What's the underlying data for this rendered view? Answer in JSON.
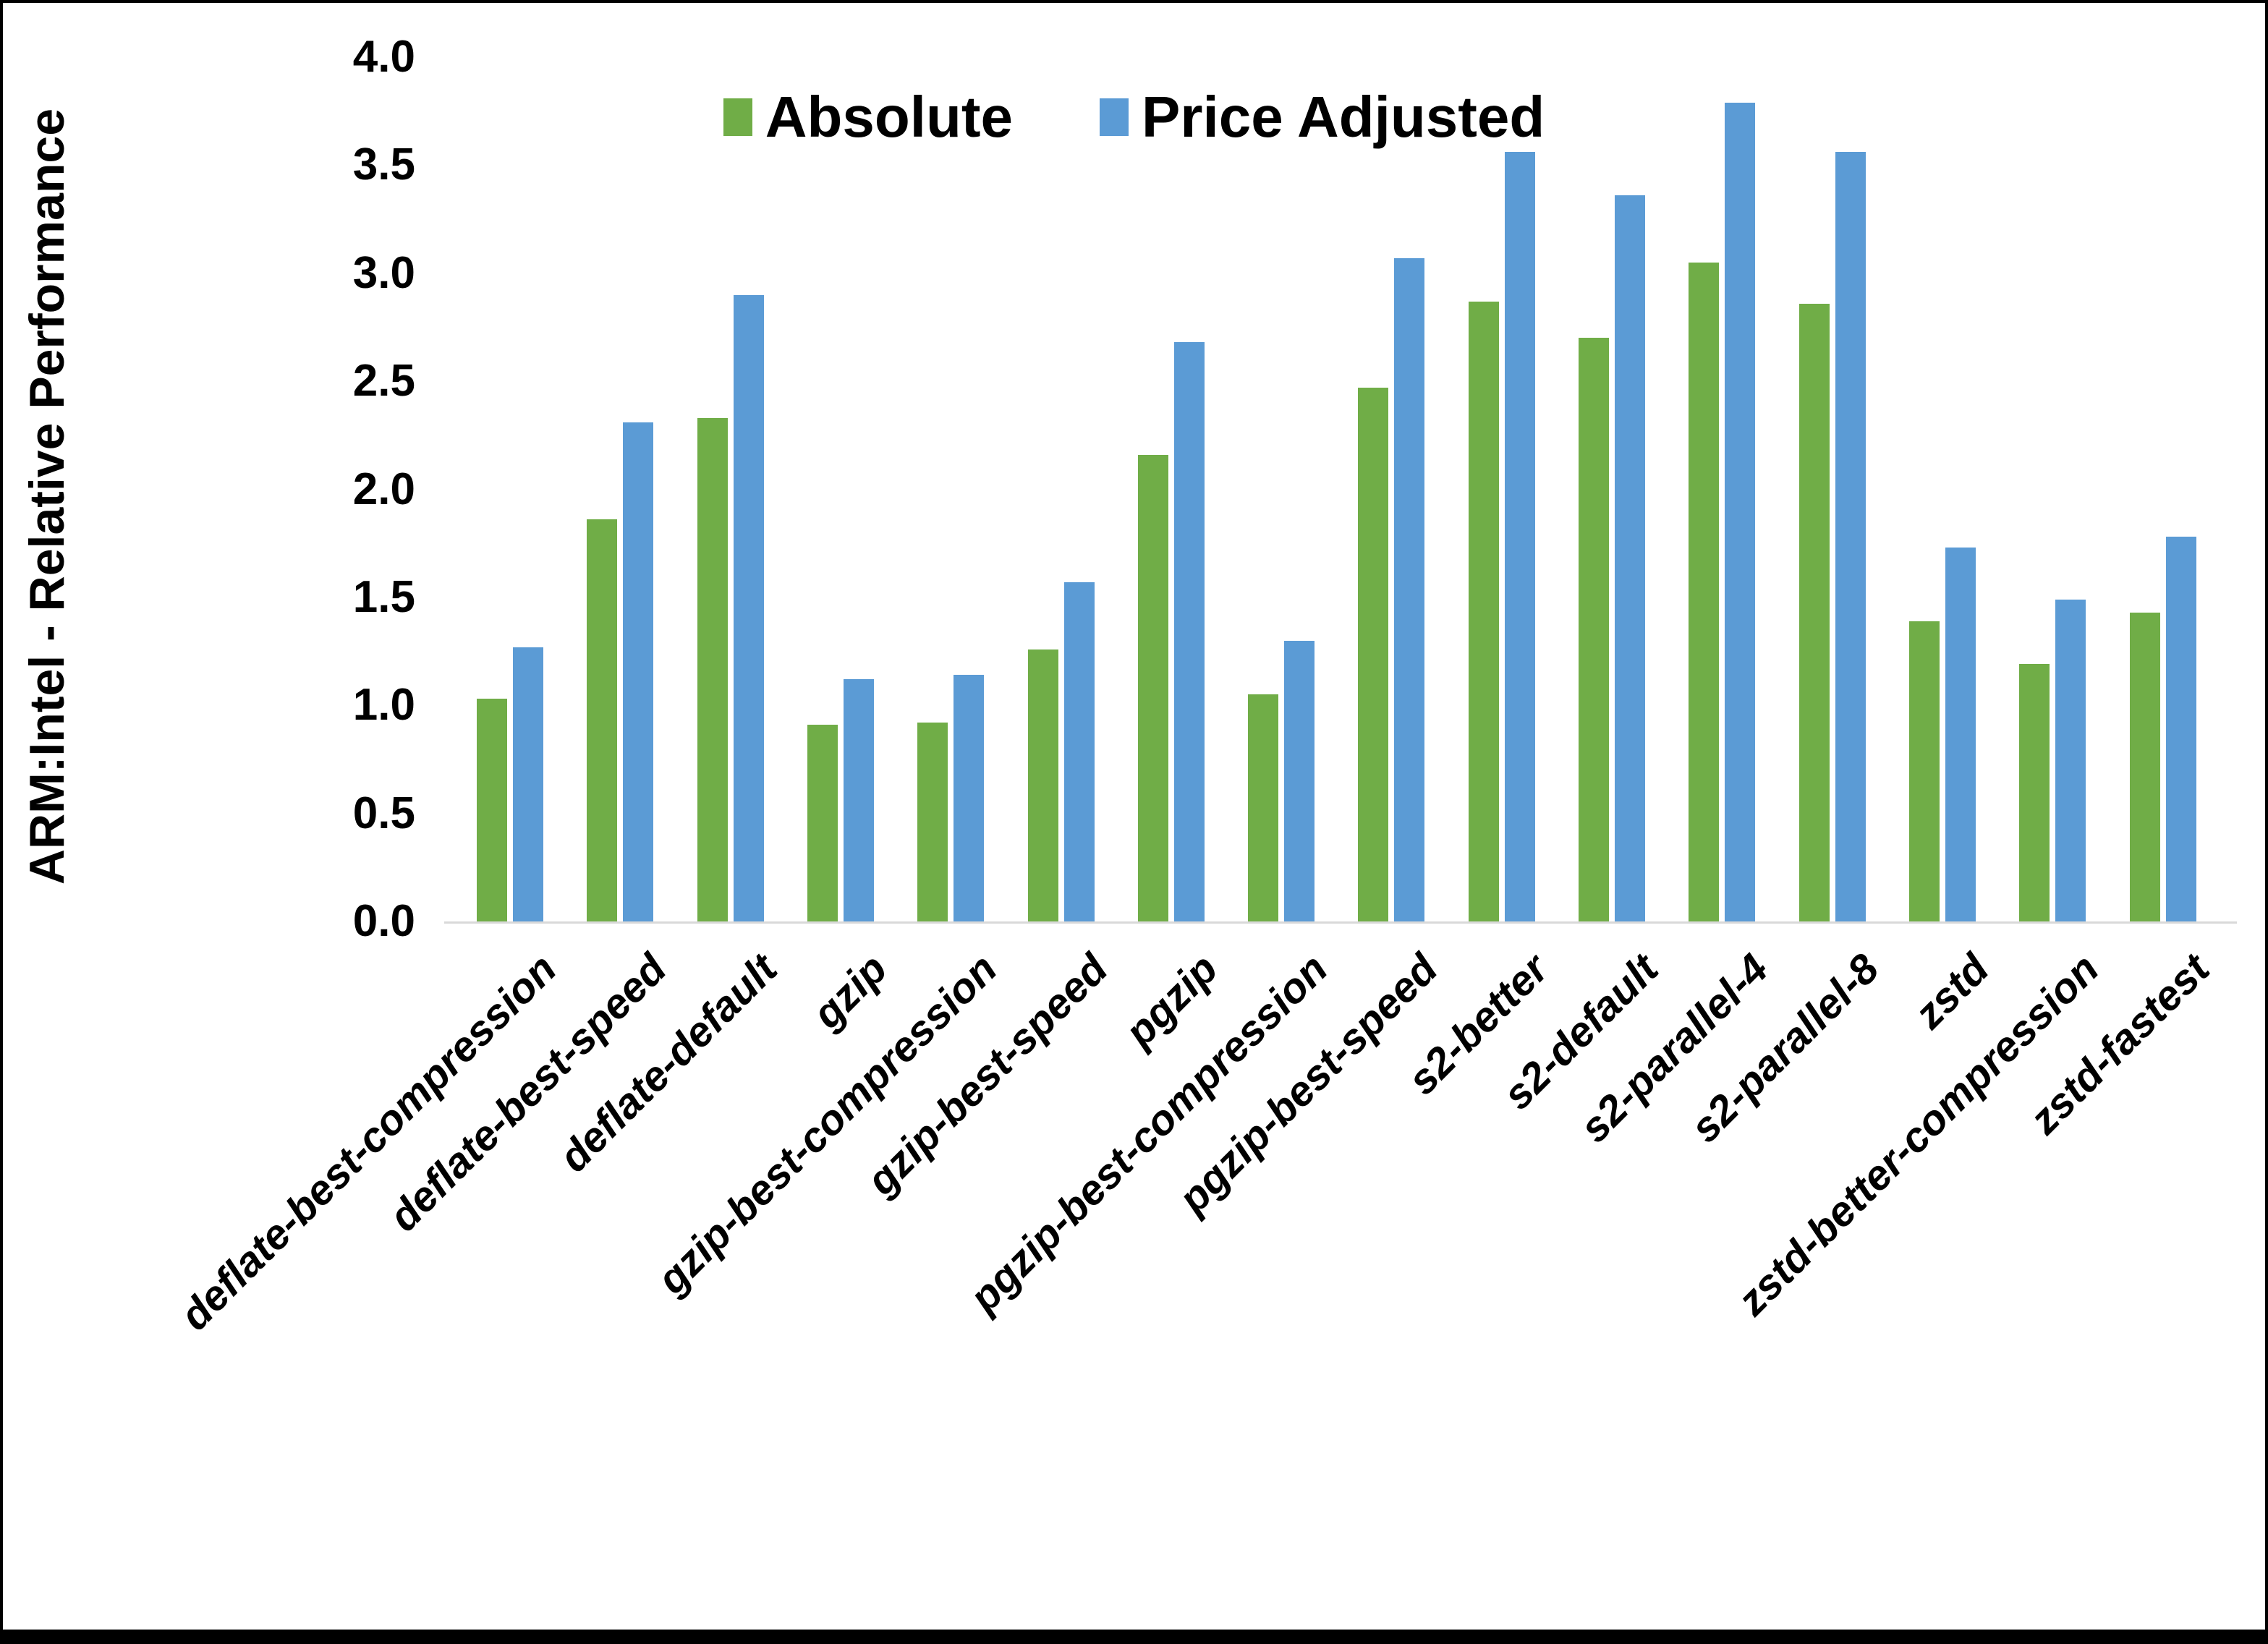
{
  "figure": {
    "background": "#ffffff",
    "border_color": "#000000",
    "axis_line_color": "#d9d9d9",
    "text_color": "#000000"
  },
  "chart_data": {
    "type": "bar",
    "title": "",
    "xlabel": "",
    "ylabel": "ARM:Intel - Relative Performance",
    "ylim": [
      0.0,
      4.0
    ],
    "ytick_step": 0.5,
    "yticks": [
      "0.0",
      "0.5",
      "1.0",
      "1.5",
      "2.0",
      "2.5",
      "3.0",
      "3.5",
      "4.0"
    ],
    "grid": false,
    "legend_position": "top-center",
    "categories": [
      "deflate-best-compression",
      "deflate-best-speed",
      "deflate-default",
      "gzip",
      "gzip-best-compression",
      "gzip-best-speed",
      "pgzip",
      "pgzip-best-compression",
      "pgzip-best-speed",
      "s2-better",
      "s2-default",
      "s2-parallel-4",
      "s2-parallel-8",
      "zstd",
      "zstd-better-compression",
      "zstd-fastest"
    ],
    "series": [
      {
        "name": "Absolute",
        "color": "#70AD47",
        "values": [
          1.03,
          1.86,
          2.33,
          0.91,
          0.92,
          1.26,
          2.16,
          1.05,
          2.47,
          2.87,
          2.7,
          3.05,
          2.86,
          1.39,
          1.19,
          1.43
        ]
      },
      {
        "name": "Price Adjusted",
        "color": "#5B9BD5",
        "values": [
          1.27,
          2.31,
          2.9,
          1.12,
          1.14,
          1.57,
          2.68,
          1.3,
          3.07,
          3.56,
          3.36,
          3.79,
          3.56,
          1.73,
          1.49,
          1.78
        ]
      }
    ]
  }
}
